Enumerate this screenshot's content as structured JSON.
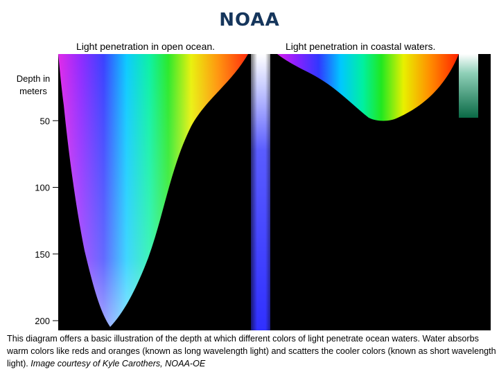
{
  "header": {
    "title": "NOAA"
  },
  "diagram": {
    "left_panel_title": "Light penetration in open ocean.",
    "right_panel_title": "Light penetration in coastal waters.",
    "axis_label_line1": "Depth in",
    "axis_label_line2": "meters",
    "depth_ticks": [
      {
        "value": 50,
        "label": "50"
      },
      {
        "value": 100,
        "label": "100"
      },
      {
        "value": 150,
        "label": "150"
      },
      {
        "value": 200,
        "label": "200"
      }
    ],
    "depth_range": [
      0,
      200
    ],
    "colors": {
      "background": "#000000",
      "violet": "#d21ee6",
      "blue": "#3a30ff",
      "cyan": "#00d8ff",
      "green": "#18e818",
      "yellow": "#f5f000",
      "orange": "#ff8a00",
      "red": "#ff2200",
      "coastal_green": "#0a6a46"
    }
  },
  "caption": {
    "text": "This diagram offers a basic illustration of the depth at which different colors of light penetrate ocean waters. Water absorbs warm colors like reds and oranges (known as long wavelength light) and scatters the cooler colors (known as short wavelength light).",
    "credit": "Image courtesy of Kyle Carothers, NOAA-OE"
  }
}
